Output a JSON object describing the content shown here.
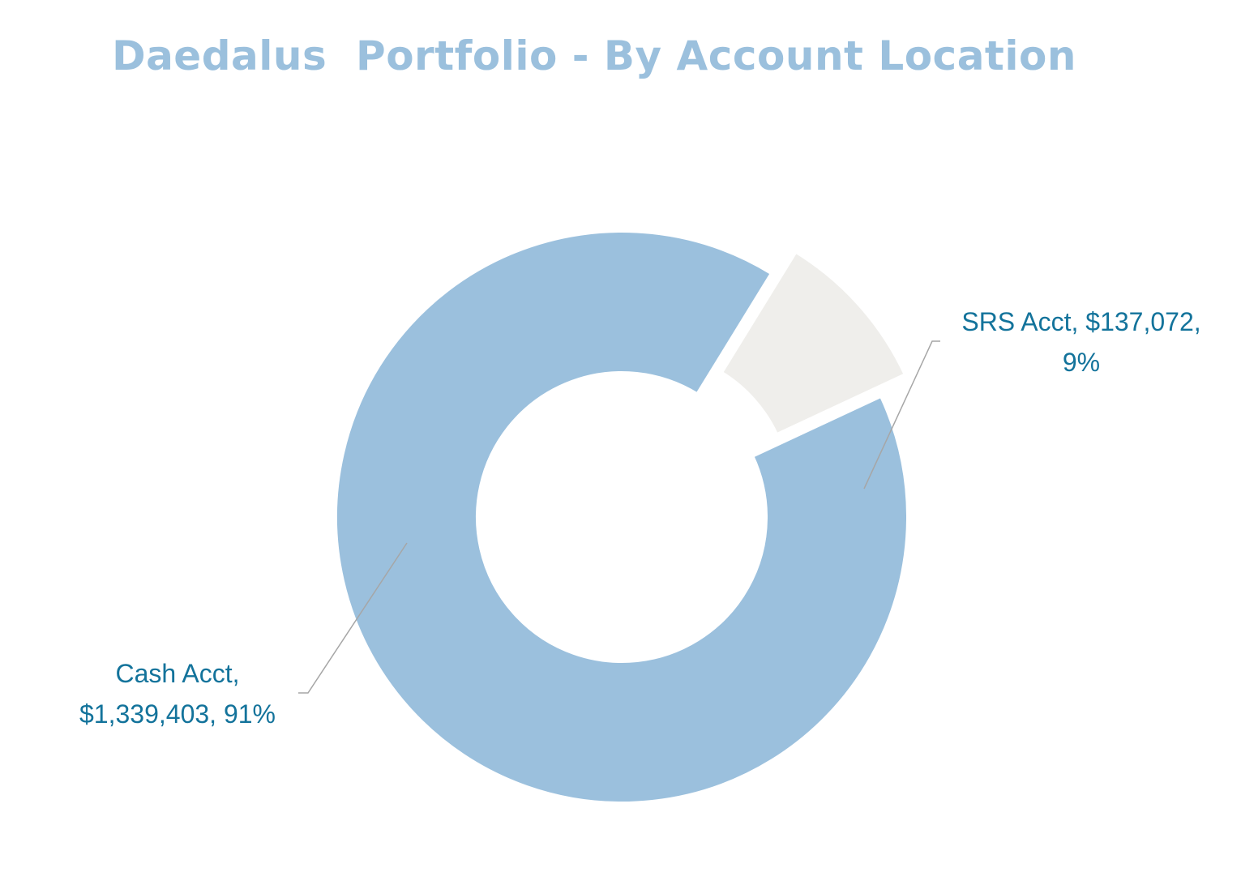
{
  "chart_data": {
    "type": "pie",
    "variant": "donut",
    "title": "Daedalus  Portfolio - By Account Location",
    "slices": [
      {
        "name": "Cash Acct",
        "value": 1339403,
        "percent": 91,
        "exploded": false,
        "color": "#9bc0dd",
        "label_lines": [
          "Cash Acct,",
          "$1,339,403, 91%"
        ]
      },
      {
        "name": "SRS Acct",
        "value": 137072,
        "percent": 9,
        "exploded": true,
        "color": "#efeeeb",
        "label_lines": [
          "SRS Acct, $137,072,",
          "9%"
        ]
      }
    ],
    "legend": "none",
    "colors": {
      "title": "#9bc0dd",
      "label_text": "#13739b",
      "leader_line": "#a6a6a6"
    }
  }
}
